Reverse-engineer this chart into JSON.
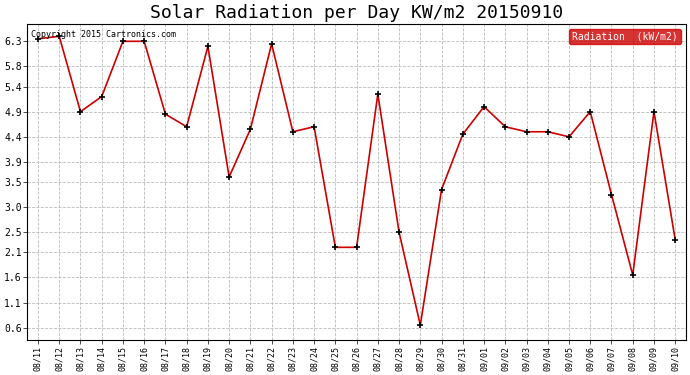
{
  "title": "Solar Radiation per Day KW/m2 20150910",
  "copyright_text": "Copyright 2015 Cartronics.com",
  "legend_label": "Radiation  (kW/m2)",
  "dates": [
    "08/11",
    "08/12",
    "08/13",
    "08/14",
    "08/15",
    "08/16",
    "08/17",
    "08/18",
    "08/19",
    "08/20",
    "08/21",
    "08/22",
    "08/23",
    "08/24",
    "08/25",
    "08/26",
    "08/27",
    "08/28",
    "08/29",
    "08/30",
    "08/31",
    "09/01",
    "09/02",
    "09/03",
    "09/04",
    "09/05",
    "09/06",
    "09/07",
    "09/08",
    "09/09",
    "09/10"
  ],
  "values": [
    6.35,
    6.4,
    4.9,
    5.2,
    6.3,
    6.3,
    4.85,
    4.6,
    6.2,
    3.6,
    4.55,
    6.25,
    4.5,
    4.6,
    2.2,
    2.2,
    5.25,
    2.5,
    0.65,
    3.35,
    4.45,
    5.0,
    4.6,
    4.5,
    4.5,
    4.4,
    4.9,
    3.25,
    1.65,
    4.9,
    2.35
  ],
  "line_color": "#cc0000",
  "marker_color": "#000000",
  "bg_color": "#ffffff",
  "plot_bg_color": "#ffffff",
  "grid_color": "#bbbbbb",
  "yticks": [
    0.6,
    1.1,
    1.6,
    2.1,
    2.5,
    3.0,
    3.5,
    3.9,
    4.4,
    4.9,
    5.4,
    5.8,
    6.3
  ],
  "ylim": [
    0.35,
    6.65
  ],
  "title_fontsize": 13,
  "legend_bg_color": "#cc0000",
  "legend_text_color": "#ffffff"
}
